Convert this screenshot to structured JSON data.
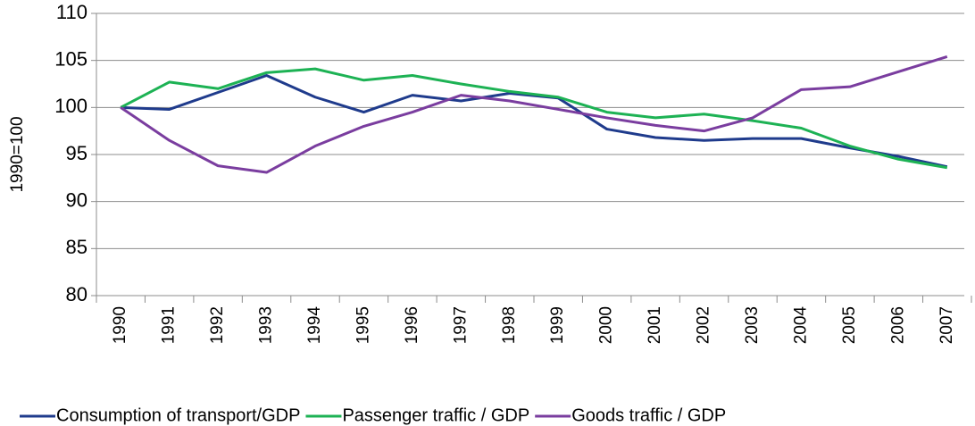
{
  "chart_data": {
    "type": "line",
    "ylabel": "1990=100",
    "categories": [
      "1990",
      "1991",
      "1992",
      "1993",
      "1994",
      "1995",
      "1996",
      "1997",
      "1998",
      "1999",
      "2000",
      "2001",
      "2002",
      "2003",
      "2004",
      "2005",
      "2006",
      "2007"
    ],
    "series": [
      {
        "name": "Consumption of transport/GDP",
        "color": "#1f3b8c",
        "values": [
          100,
          99.8,
          101.6,
          103.4,
          101.1,
          99.5,
          101.3,
          100.7,
          101.5,
          101.0,
          97.7,
          96.8,
          96.5,
          96.7,
          96.7,
          95.7,
          94.8,
          93.7
        ]
      },
      {
        "name": "Passenger traffic / GDP",
        "color": "#1db254",
        "values": [
          100,
          102.7,
          102.0,
          103.7,
          104.1,
          102.9,
          103.4,
          102.5,
          101.7,
          101.1,
          99.5,
          98.9,
          99.3,
          98.6,
          97.8,
          95.9,
          94.5,
          93.6
        ]
      },
      {
        "name": "Goods traffic / GDP",
        "color": "#7a3d9f",
        "values": [
          100,
          96.5,
          93.8,
          93.1,
          95.9,
          98.0,
          99.5,
          101.3,
          100.7,
          99.8,
          98.9,
          98.1,
          97.5,
          98.9,
          101.9,
          102.2,
          103.8,
          105.4
        ]
      }
    ],
    "ylim": [
      80,
      110
    ],
    "yticks": [
      80,
      85,
      90,
      95,
      100,
      105,
      110
    ],
    "grid": true,
    "legend": "bottom"
  }
}
